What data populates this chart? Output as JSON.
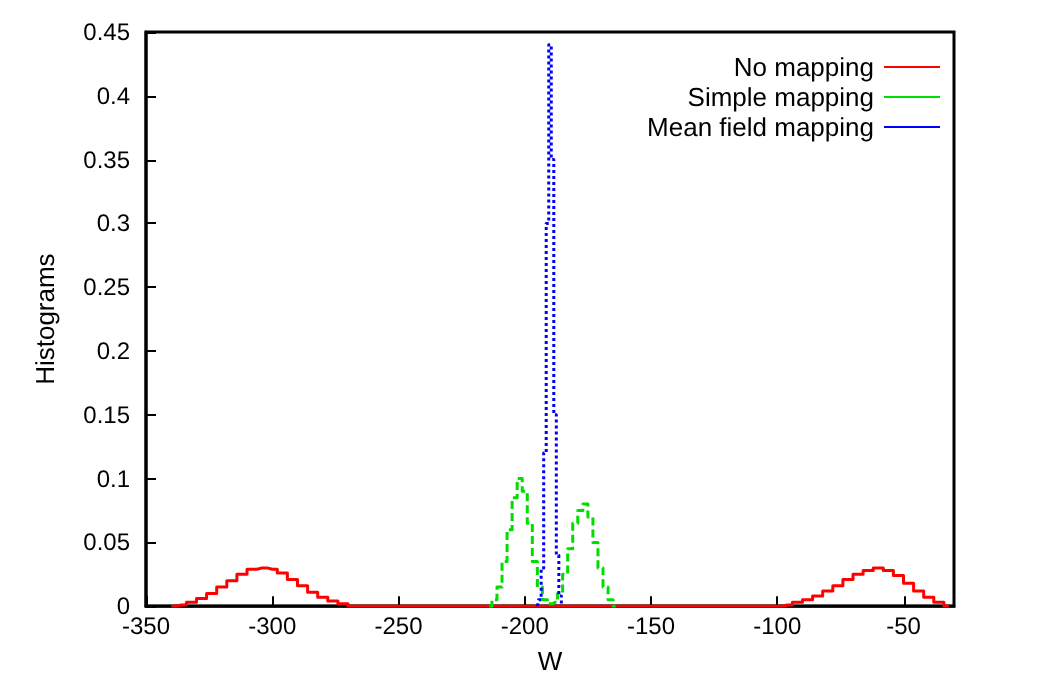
{
  "chart_data": {
    "type": "step",
    "xlabel": "W",
    "ylabel": "Histograms",
    "xlim": [
      -350,
      -30
    ],
    "xticks": [
      -350,
      -300,
      -250,
      -200,
      -150,
      -100,
      -50
    ],
    "ylim": [
      0,
      0.45
    ],
    "yticks": [
      0,
      0.05,
      0.1,
      0.15,
      0.2,
      0.25,
      0.3,
      0.35,
      0.4,
      0.45
    ],
    "grid": false,
    "legend": "top right",
    "series": [
      {
        "name": "No mapping",
        "color": "#ff0000",
        "line_style": "solid",
        "x": [
          -340,
          -336,
          -332,
          -328,
          -324,
          -320,
          -316,
          -312,
          -308,
          -304,
          -300,
          -296,
          -292,
          -288,
          -284,
          -280,
          -276,
          -272,
          -268,
          -100,
          -96,
          -92,
          -88,
          -84,
          -80,
          -76,
          -72,
          -68,
          -64,
          -60,
          -56,
          -52,
          -48,
          -44,
          -40,
          -36,
          -32
        ],
        "values": [
          0,
          0.001,
          0.003,
          0.006,
          0.01,
          0.015,
          0.02,
          0.025,
          0.029,
          0.03,
          0.029,
          0.026,
          0.021,
          0.016,
          0.011,
          0.007,
          0.004,
          0.002,
          0,
          0,
          0.001,
          0.003,
          0.005,
          0.008,
          0.012,
          0.016,
          0.021,
          0.025,
          0.028,
          0.03,
          0.028,
          0.024,
          0.018,
          0.012,
          0.007,
          0.003,
          0
        ]
      },
      {
        "name": "Simple mapping",
        "color": "#00dd00",
        "line_style": "dashed",
        "x": [
          -214,
          -212,
          -210,
          -208,
          -206,
          -204,
          -202,
          -200,
          -198,
          -196,
          -194,
          -192,
          -190,
          -188,
          -186,
          -184,
          -182,
          -180,
          -178,
          -176,
          -174,
          -172,
          -170,
          -168,
          -166,
          -164
        ],
        "values": [
          0,
          0.005,
          0.015,
          0.035,
          0.06,
          0.085,
          0.1,
          0.09,
          0.065,
          0.035,
          0.015,
          0.005,
          0.002,
          0.003,
          0.01,
          0.025,
          0.045,
          0.065,
          0.075,
          0.08,
          0.07,
          0.05,
          0.03,
          0.015,
          0.005,
          0
        ]
      },
      {
        "name": "Mean field mapping",
        "color": "#0000ff",
        "line_style": "dotted",
        "x": [
          -195,
          -194,
          -193,
          -192,
          -191,
          -190,
          -189,
          -188,
          -187,
          -186,
          -185
        ],
        "values": [
          0,
          0.005,
          0.03,
          0.12,
          0.3,
          0.44,
          0.35,
          0.15,
          0.04,
          0.008,
          0
        ]
      }
    ]
  }
}
